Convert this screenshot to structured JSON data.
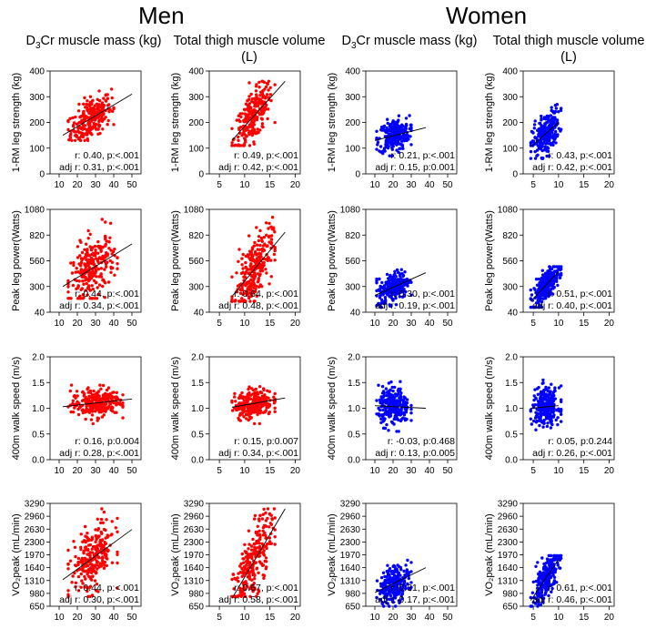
{
  "groups": [
    "Men",
    "Women"
  ],
  "columns": [
    {
      "pre": "D",
      "sub": "3",
      "post": "Cr muscle mass (kg)"
    },
    {
      "pre": "Total thigh muscle volume (L)",
      "sub": "",
      "post": ""
    },
    {
      "pre": "D",
      "sub": "3",
      "post": "Cr muscle mass (kg)"
    },
    {
      "pre": "Total thigh muscle volume (L)",
      "sub": "",
      "post": ""
    }
  ],
  "chart_data": {
    "type": "scatter",
    "rows": [
      {
        "ylabel": "1-RM leg strength (kg)",
        "yticks": [
          0,
          100,
          200,
          300,
          400
        ],
        "ylim": [
          0,
          400
        ]
      },
      {
        "ylabel": "Peak leg power(Watts)",
        "yticks": [
          40,
          300,
          560,
          820,
          1080
        ],
        "ylim": [
          40,
          1080
        ]
      },
      {
        "ylabel": "400m walk speed (m/s)",
        "yticks": [
          "0.0",
          "0.5",
          "1.0",
          "1.5",
          "2.0"
        ],
        "ylim": [
          0,
          2
        ]
      },
      {
        "ylabel": "VO₂peak (mL/min)",
        "yticks": [
          650,
          980,
          1310,
          1640,
          1970,
          2300,
          2630,
          2960,
          3290
        ],
        "ylim": [
          650,
          3290
        ]
      }
    ],
    "xaxes": {
      "mass": {
        "ticks": [
          10,
          20,
          30,
          40,
          50
        ],
        "xlim": [
          5,
          55
        ]
      },
      "thigh": {
        "ticks": [
          5,
          10,
          15,
          20
        ],
        "xlim": [
          3,
          21
        ]
      }
    },
    "panels": [
      {
        "group": "Men",
        "row": 0,
        "x": "mass",
        "color": "#ff0000",
        "r": "r: 0.40, p:<.001",
        "adj": "adj r: 0.31, p:<.001",
        "fit": [
          [
            12,
            150
          ],
          [
            50,
            310
          ]
        ],
        "cx": [
          15,
          40
        ],
        "cy": [
          130,
          340
        ]
      },
      {
        "group": "Men",
        "row": 0,
        "x": "thigh",
        "color": "#ff0000",
        "r": "r: 0.49, p:<.001",
        "adj": "adj r: 0.42, p:<.001",
        "fit": [
          [
            7.5,
            130
          ],
          [
            18,
            360
          ]
        ],
        "cx": [
          7.5,
          16
        ],
        "cy": [
          110,
          360
        ]
      },
      {
        "group": "Women",
        "row": 0,
        "x": "mass",
        "color": "#0000ff",
        "r": "r: 0.21, p:<.001",
        "adj": "adj r: 0.15, p:0.001",
        "fit": [
          [
            10,
            130
          ],
          [
            38,
            180
          ]
        ],
        "cx": [
          11,
          30
        ],
        "cy": [
          70,
          240
        ]
      },
      {
        "group": "Women",
        "row": 0,
        "x": "thigh",
        "color": "#0000ff",
        "r": "r: 0.43, p:<.001",
        "adj": "adj r: 0.42, p:<.001",
        "fit": [
          [
            4.5,
            105
          ],
          [
            10,
            200
          ]
        ],
        "cx": [
          4.5,
          10.5
        ],
        "cy": [
          60,
          270
        ]
      },
      {
        "group": "Men",
        "row": 1,
        "x": "mass",
        "color": "#ff0000",
        "r": "r: 0.44, p:<.001",
        "adj": "adj r: 0.34, p:<.001",
        "fit": [
          [
            12,
            300
          ],
          [
            50,
            730
          ]
        ],
        "cx": [
          15,
          42
        ],
        "cy": [
          180,
          1000
        ]
      },
      {
        "group": "Men",
        "row": 1,
        "x": "thigh",
        "color": "#ff0000",
        "r": "r: 0.64, p:<.001",
        "adj": "adj r: 0.48, p:<.001",
        "fit": [
          [
            7.5,
            200
          ],
          [
            18,
            850
          ]
        ],
        "cx": [
          7.5,
          16
        ],
        "cy": [
          150,
          1000
        ]
      },
      {
        "group": "Women",
        "row": 1,
        "x": "mass",
        "color": "#0000ff",
        "r": "r: 0.30, p:<.001",
        "adj": "adj r: 0.19, p:<.001",
        "fit": [
          [
            10,
            210
          ],
          [
            38,
            440
          ]
        ],
        "cx": [
          11,
          30
        ],
        "cy": [
          90,
          500
        ]
      },
      {
        "group": "Women",
        "row": 1,
        "x": "thigh",
        "color": "#0000ff",
        "r": "r: 0.51, p:<.001",
        "adj": "adj r: 0.40, p:<.001",
        "fit": [
          [
            4.5,
            150
          ],
          [
            10,
            450
          ]
        ],
        "cx": [
          4.5,
          10.5
        ],
        "cy": [
          90,
          500
        ]
      },
      {
        "group": "Men",
        "row": 2,
        "x": "mass",
        "color": "#ff0000",
        "r": "r: 0.16, p:0.004",
        "adj": "adj r: 0.28, p:<.001",
        "fit": [
          [
            12,
            1.03
          ],
          [
            50,
            1.18
          ]
        ],
        "cx": [
          15,
          45
        ],
        "cy": [
          0.7,
          1.45
        ]
      },
      {
        "group": "Men",
        "row": 2,
        "x": "thigh",
        "color": "#ff0000",
        "r": "r: 0.15, p:0.007",
        "adj": "adj r: 0.34, p:<.001",
        "fit": [
          [
            7.5,
            1.02
          ],
          [
            18,
            1.2
          ]
        ],
        "cx": [
          7.5,
          16
        ],
        "cy": [
          0.7,
          1.45
        ]
      },
      {
        "group": "Women",
        "row": 2,
        "x": "mass",
        "color": "#0000ff",
        "r": "r: -0.03, p:0.468",
        "adj": "adj r: 0.13, p:0.005",
        "fit": [
          [
            10,
            1.05
          ],
          [
            38,
            1.0
          ]
        ],
        "cx": [
          11,
          30
        ],
        "cy": [
          0.55,
          1.55
        ]
      },
      {
        "group": "Women",
        "row": 2,
        "x": "thigh",
        "color": "#0000ff",
        "r": "r: 0.05, p:0.244",
        "adj": "adj r: 0.26, p:<.001",
        "fit": [
          [
            4.5,
            1.0
          ],
          [
            10,
            1.05
          ]
        ],
        "cx": [
          4.5,
          10.5
        ],
        "cy": [
          0.55,
          1.55
        ]
      },
      {
        "group": "Men",
        "row": 3,
        "x": "mass",
        "color": "#ff0000",
        "r": "r: 0.44, p:<.001",
        "adj": "adj r: 0.30, p:<.001",
        "fit": [
          [
            12,
            1330
          ],
          [
            50,
            2620
          ]
        ],
        "cx": [
          15,
          42
        ],
        "cy": [
          900,
          3150
        ]
      },
      {
        "group": "Men",
        "row": 3,
        "x": "thigh",
        "color": "#ff0000",
        "r": "r: 0.67, p:<.001",
        "adj": "adj r: 0.58, p:<.001",
        "fit": [
          [
            7.5,
            850
          ],
          [
            18,
            3150
          ]
        ],
        "cx": [
          7.5,
          16
        ],
        "cy": [
          900,
          3150
        ]
      },
      {
        "group": "Women",
        "row": 3,
        "x": "mass",
        "color": "#0000ff",
        "r": "r: 0.31, p:<.001",
        "adj": "adj r: 0.17, p:<.001",
        "fit": [
          [
            10,
            1000
          ],
          [
            38,
            1640
          ]
        ],
        "cx": [
          11,
          30
        ],
        "cy": [
          650,
          1900
        ]
      },
      {
        "group": "Women",
        "row": 3,
        "x": "thigh",
        "color": "#0000ff",
        "r": "r: 0.61, p:<.001",
        "adj": "adj r: 0.46, p:<.001",
        "fit": [
          [
            4.5,
            800
          ],
          [
            10,
            1850
          ]
        ],
        "cx": [
          4.5,
          10.5
        ],
        "cy": [
          650,
          1950
        ]
      }
    ]
  }
}
